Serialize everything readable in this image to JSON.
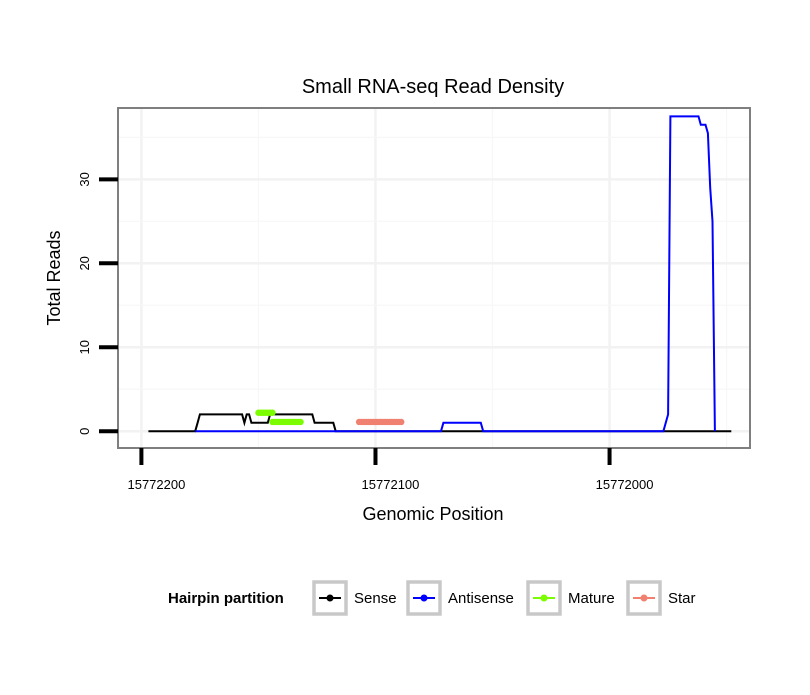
{
  "chart_data": {
    "type": "line",
    "title": "Small RNA-seq Read Density",
    "xlabel": "Genomic Position",
    "ylabel": "Total Reads",
    "x_reversed": true,
    "xlim": [
      15772210,
      15771940
    ],
    "ylim": [
      -2,
      38.5
    ],
    "x_ticks": [
      15772200,
      15772100,
      15772000
    ],
    "x_tick_labels": [
      "15772200",
      "15772100",
      "15772000"
    ],
    "y_ticks": [
      0,
      10,
      20,
      30
    ],
    "y_tick_labels": [
      "0",
      "10",
      "20",
      "30"
    ],
    "grid": true,
    "legend_position": "bottom",
    "legend_title": "Hairpin partition",
    "series": [
      {
        "name": "Sense",
        "color": "#000000",
        "style": "line",
        "points": [
          [
            15772197,
            0
          ],
          [
            15772177,
            0
          ],
          [
            15772176,
            1
          ],
          [
            15772175,
            2
          ],
          [
            15772157,
            2
          ],
          [
            15772156,
            1
          ],
          [
            15772155,
            2
          ],
          [
            15772154,
            2
          ],
          [
            15772153,
            1
          ],
          [
            15772146,
            1
          ],
          [
            15772145,
            2
          ],
          [
            15772127,
            2
          ],
          [
            15772126,
            1
          ],
          [
            15772118,
            1
          ],
          [
            15772117,
            0
          ],
          [
            15771948,
            0
          ]
        ]
      },
      {
        "name": "Antisense",
        "color": "#0000ff",
        "style": "line",
        "points": [
          [
            15772177,
            0
          ],
          [
            15772108,
            0
          ],
          [
            15772107,
            0
          ],
          [
            15772090,
            0
          ],
          [
            15772089,
            0
          ],
          [
            15772072,
            0
          ],
          [
            15772071,
            1
          ],
          [
            15772055,
            1
          ],
          [
            15772054,
            0
          ],
          [
            15771977,
            0
          ],
          [
            15771975,
            2
          ],
          [
            15771974,
            37.5
          ],
          [
            15771962,
            37.5
          ],
          [
            15771961,
            36.5
          ],
          [
            15771959,
            36.5
          ],
          [
            15771958,
            35.5
          ],
          [
            15771957,
            29
          ],
          [
            15771956,
            25
          ],
          [
            15771955,
            0
          ]
        ]
      },
      {
        "name": "Mature",
        "color": "#7cfc00",
        "style": "points",
        "points": [
          [
            15772150,
            2.2
          ],
          [
            15772144,
            2.2
          ],
          [
            15772144,
            1.1
          ],
          [
            15772132,
            1.1
          ]
        ]
      },
      {
        "name": "Star",
        "color": "#f08070",
        "style": "points",
        "points": [
          [
            15772107,
            1.1
          ],
          [
            15772089,
            1.1
          ]
        ]
      }
    ]
  }
}
